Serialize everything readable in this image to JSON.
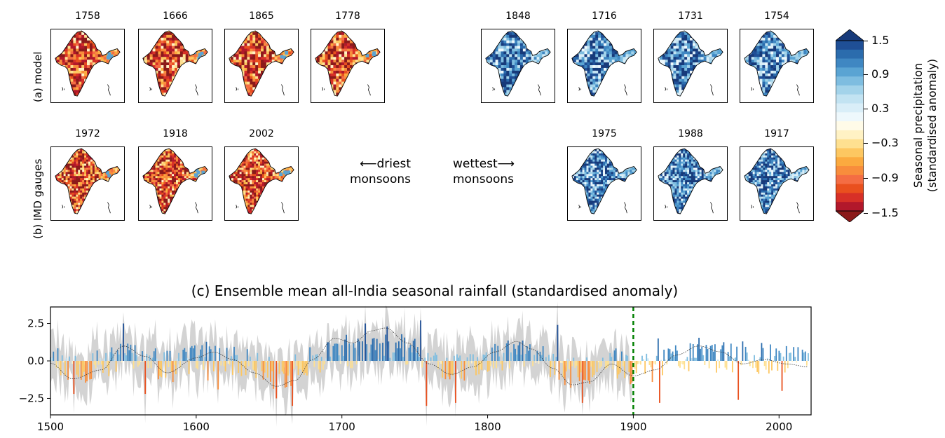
{
  "model_row": {
    "label": "(a) model",
    "dry_years": [
      "1758",
      "1666",
      "1865",
      "1778"
    ],
    "wet_years": [
      "1848",
      "1716",
      "1731",
      "1754"
    ]
  },
  "gauge_row": {
    "label": "(b) IMD gauges",
    "dry_years": [
      "1972",
      "1918",
      "2002"
    ],
    "wet_years": [
      "1975",
      "1988",
      "1917"
    ]
  },
  "middle_text": {
    "driest": "⟵driest",
    "driest_sub": "monsoons",
    "wettest": "wettest⟶",
    "wettest_sub": "monsoons"
  },
  "colorbar": {
    "label_line1": "Seasonal precipitation",
    "label_line2": "(standardised anomaly)",
    "ticks": [
      "1.5",
      "0.9",
      "0.3",
      "−0.3",
      "−0.9",
      "−1.5"
    ],
    "colors": [
      "#8b1a1a",
      "#b2182b",
      "#d73027",
      "#e9501e",
      "#f46d43",
      "#f88d3c",
      "#fbaa3f",
      "#fdc761",
      "#fee090",
      "#fff2c4",
      "#fffbe8",
      "#eef8fc",
      "#d9eef8",
      "#c2e3f2",
      "#a3d3ea",
      "#7ebde0",
      "#5aa4d3",
      "#3f87c2",
      "#2b6cad",
      "#1f4f96",
      "#173a7a"
    ]
  },
  "chart_data": {
    "type": "bar",
    "title": "(c) Ensemble mean all-India seasonal rainfall (standardised anomaly)",
    "xlim": [
      1500,
      2022
    ],
    "ylim": [
      -3.6,
      3.6
    ],
    "xticks": [
      "1500",
      "1600",
      "1700",
      "1800",
      "1900",
      "2000"
    ],
    "yticks": [
      "2.5",
      "0.0",
      "−2.5"
    ],
    "vline_year": 1900,
    "vline_color": "#008000",
    "smooth_period_years": 65,
    "smooth_curve": [
      [
        1500,
        -0.15
      ],
      [
        1515,
        -1.2
      ],
      [
        1535,
        -0.6
      ],
      [
        1550,
        1.0
      ],
      [
        1565,
        0.3
      ],
      [
        1580,
        -0.8
      ],
      [
        1600,
        0.2
      ],
      [
        1612,
        0.6
      ],
      [
        1625,
        0.1
      ],
      [
        1640,
        -0.8
      ],
      [
        1655,
        -1.7
      ],
      [
        1668,
        -1.3
      ],
      [
        1680,
        0.1
      ],
      [
        1695,
        1.5
      ],
      [
        1708,
        1.2
      ],
      [
        1720,
        2.0
      ],
      [
        1730,
        2.2
      ],
      [
        1745,
        1.2
      ],
      [
        1760,
        -0.2
      ],
      [
        1775,
        -0.9
      ],
      [
        1790,
        -0.4
      ],
      [
        1805,
        0.6
      ],
      [
        1820,
        1.3
      ],
      [
        1830,
        0.8
      ],
      [
        1845,
        -0.5
      ],
      [
        1858,
        -1.6
      ],
      [
        1870,
        -1.4
      ],
      [
        1885,
        -0.2
      ],
      [
        1900,
        -1.0
      ],
      [
        1915,
        -0.6
      ],
      [
        1930,
        0.4
      ],
      [
        1945,
        1.0
      ],
      [
        1960,
        0.6
      ],
      [
        1975,
        -0.2
      ],
      [
        1990,
        0.1
      ],
      [
        2005,
        -0.2
      ],
      [
        2020,
        -0.4
      ]
    ],
    "extreme_bars": [
      [
        1516,
        -2.2
      ],
      [
        1550,
        2.5
      ],
      [
        1565,
        -2.2
      ],
      [
        1608,
        -1.3
      ],
      [
        1615,
        -1.9
      ],
      [
        1655,
        -2.5
      ],
      [
        1666,
        -3.0
      ],
      [
        1716,
        2.5
      ],
      [
        1731,
        2.3
      ],
      [
        1754,
        2.7
      ],
      [
        1758,
        -3.0
      ],
      [
        1778,
        -2.8
      ],
      [
        1848,
        2.4
      ],
      [
        1865,
        -2.8
      ],
      [
        1917,
        1.5
      ],
      [
        1918,
        -2.8
      ],
      [
        1972,
        -2.6
      ],
      [
        1975,
        1.3
      ],
      [
        1988,
        1.2
      ],
      [
        2002,
        -2.0
      ]
    ]
  }
}
